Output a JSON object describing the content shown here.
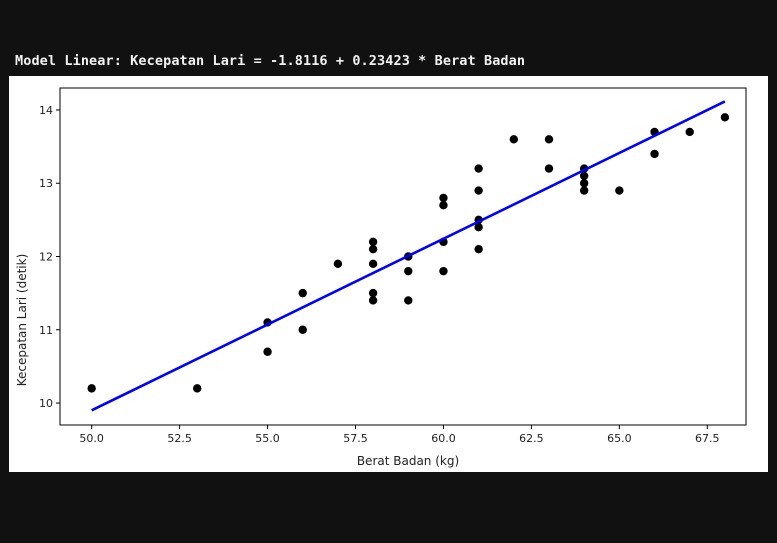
{
  "output": {
    "model_text": "Model Linear: Kecepatan Lari = -1.8116 + 0.23423 * Berat Badan"
  },
  "chart_data": {
    "type": "scatter",
    "xlabel": "Berat Badan (kg)",
    "ylabel": "Kecepatan Lari (detik)",
    "xlim": [
      49.1,
      68.6
    ],
    "ylim": [
      9.7,
      14.3
    ],
    "xticks": [
      50.0,
      52.5,
      55.0,
      57.5,
      60.0,
      62.5,
      65.0,
      67.5
    ],
    "yticks": [
      10,
      11,
      12,
      13,
      14
    ],
    "grid": false,
    "points": [
      [
        50,
        10.2
      ],
      [
        53,
        10.2
      ],
      [
        55,
        11.1
      ],
      [
        55,
        10.7
      ],
      [
        56,
        11.5
      ],
      [
        56,
        11.0
      ],
      [
        57,
        11.9
      ],
      [
        58,
        12.2
      ],
      [
        58,
        12.1
      ],
      [
        58,
        11.9
      ],
      [
        58,
        11.5
      ],
      [
        58,
        11.4
      ],
      [
        59,
        12.0
      ],
      [
        59,
        11.8
      ],
      [
        59,
        11.4
      ],
      [
        60,
        12.8
      ],
      [
        60,
        12.7
      ],
      [
        60,
        12.2
      ],
      [
        60,
        11.8
      ],
      [
        61,
        13.2
      ],
      [
        61,
        12.9
      ],
      [
        61,
        12.5
      ],
      [
        61,
        12.4
      ],
      [
        61,
        12.1
      ],
      [
        62,
        13.6
      ],
      [
        63,
        13.6
      ],
      [
        63,
        13.2
      ],
      [
        64,
        13.2
      ],
      [
        64,
        13.1
      ],
      [
        64,
        13.0
      ],
      [
        64,
        12.9
      ],
      [
        65,
        12.9
      ],
      [
        66,
        13.7
      ],
      [
        66,
        13.4
      ],
      [
        67,
        13.7
      ],
      [
        68,
        13.9
      ]
    ],
    "regression": {
      "intercept": -1.8116,
      "slope": 0.23423,
      "x_range": [
        50,
        68
      ]
    },
    "colors": {
      "points": "#000000",
      "line": "#0000ff"
    }
  }
}
